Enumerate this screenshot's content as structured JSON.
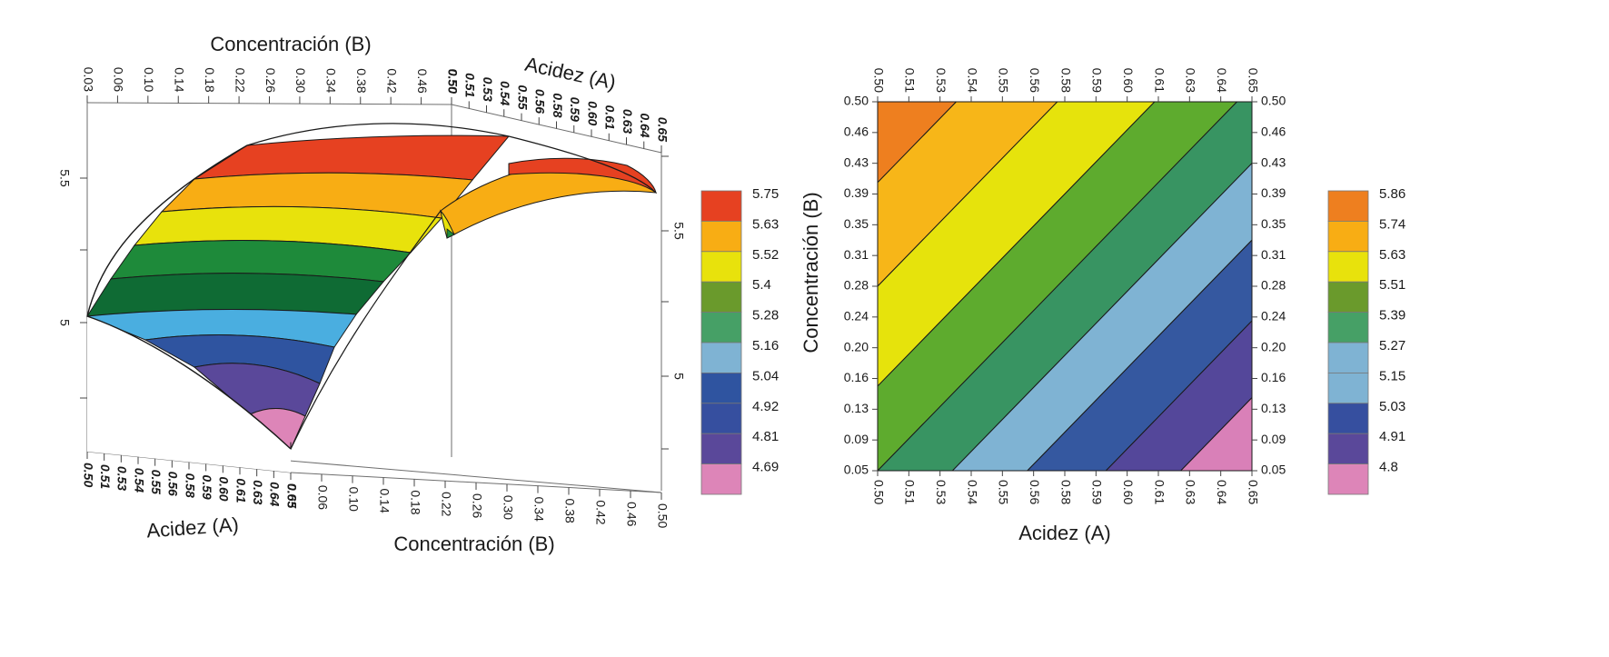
{
  "chart_data": [
    {
      "type": "surface",
      "xlabel": "Acidez (A)",
      "ylabel": "Concentración (B)",
      "x_ticks": [
        "0.50",
        "0.51",
        "0.53",
        "0.54",
        "0.55",
        "0.56",
        "0.58",
        "0.59",
        "0.60",
        "0.61",
        "0.63",
        "0.64",
        "0.65"
      ],
      "y_ticks": [
        "0.03",
        "0.06",
        "0.10",
        "0.14",
        "0.18",
        "0.22",
        "0.26",
        "0.30",
        "0.34",
        "0.38",
        "0.42",
        "0.46",
        "0.50"
      ],
      "z_ticks": [
        "5",
        "5.5"
      ],
      "xlim": [
        0.5,
        0.65
      ],
      "ylim": [
        0.03,
        0.5
      ],
      "grid": false,
      "legend_position": "right",
      "legend": [
        {
          "label": "5.75",
          "color": "#e64121"
        },
        {
          "label": "5.63",
          "color": "#f8ad14"
        },
        {
          "label": "5.52",
          "color": "#e8e20c"
        },
        {
          "label": "5.4",
          "color": "#6a9a2c"
        },
        {
          "label": "5.28",
          "color": "#46a066"
        },
        {
          "label": "5.16",
          "color": "#7fb3d3"
        },
        {
          "label": "5.04",
          "color": "#2f54a0"
        },
        {
          "label": "4.92",
          "color": "#364f9f"
        },
        {
          "label": "4.81",
          "color": "#5a489a"
        },
        {
          "label": "4.69",
          "color": "#dd85b8"
        }
      ]
    },
    {
      "type": "contour",
      "xlabel": "Acidez (A)",
      "ylabel": "Concentración (B)",
      "x_ticks": [
        "0.50",
        "0.51",
        "0.53",
        "0.54",
        "0.55",
        "0.56",
        "0.58",
        "0.59",
        "0.60",
        "0.61",
        "0.63",
        "0.64",
        "0.65"
      ],
      "y_ticks": [
        "0.50",
        "0.46",
        "0.43",
        "0.39",
        "0.35",
        "0.31",
        "0.28",
        "0.24",
        "0.20",
        "0.16",
        "0.13",
        "0.09",
        "0.05"
      ],
      "xlim": [
        0.5,
        0.65
      ],
      "ylim": [
        0.05,
        0.5
      ],
      "grid": false,
      "legend_position": "right",
      "legend": [
        {
          "label": "5.86",
          "color": "#ee7f1f"
        },
        {
          "label": "5.74",
          "color": "#f8ad14"
        },
        {
          "label": "5.63",
          "color": "#e8e20c"
        },
        {
          "label": "5.51",
          "color": "#6a9a2c"
        },
        {
          "label": "5.39",
          "color": "#46a066"
        },
        {
          "label": "5.27",
          "color": "#7fb3d3"
        },
        {
          "label": "5.15",
          "color": "#7fb3d3"
        },
        {
          "label": "5.03",
          "color": "#364f9f"
        },
        {
          "label": "4.91",
          "color": "#5a489a"
        },
        {
          "label": "4.8",
          "color": "#dd85b8"
        }
      ],
      "bands": [
        {
          "color": "#ee7f1f"
        },
        {
          "color": "#f7b618"
        },
        {
          "color": "#e6e30c"
        },
        {
          "color": "#5eab2e"
        },
        {
          "color": "#389462"
        },
        {
          "color": "#7fb3d3"
        },
        {
          "color": "#3558a0"
        },
        {
          "color": "#54479a"
        },
        {
          "color": "#d980b8"
        }
      ]
    }
  ]
}
